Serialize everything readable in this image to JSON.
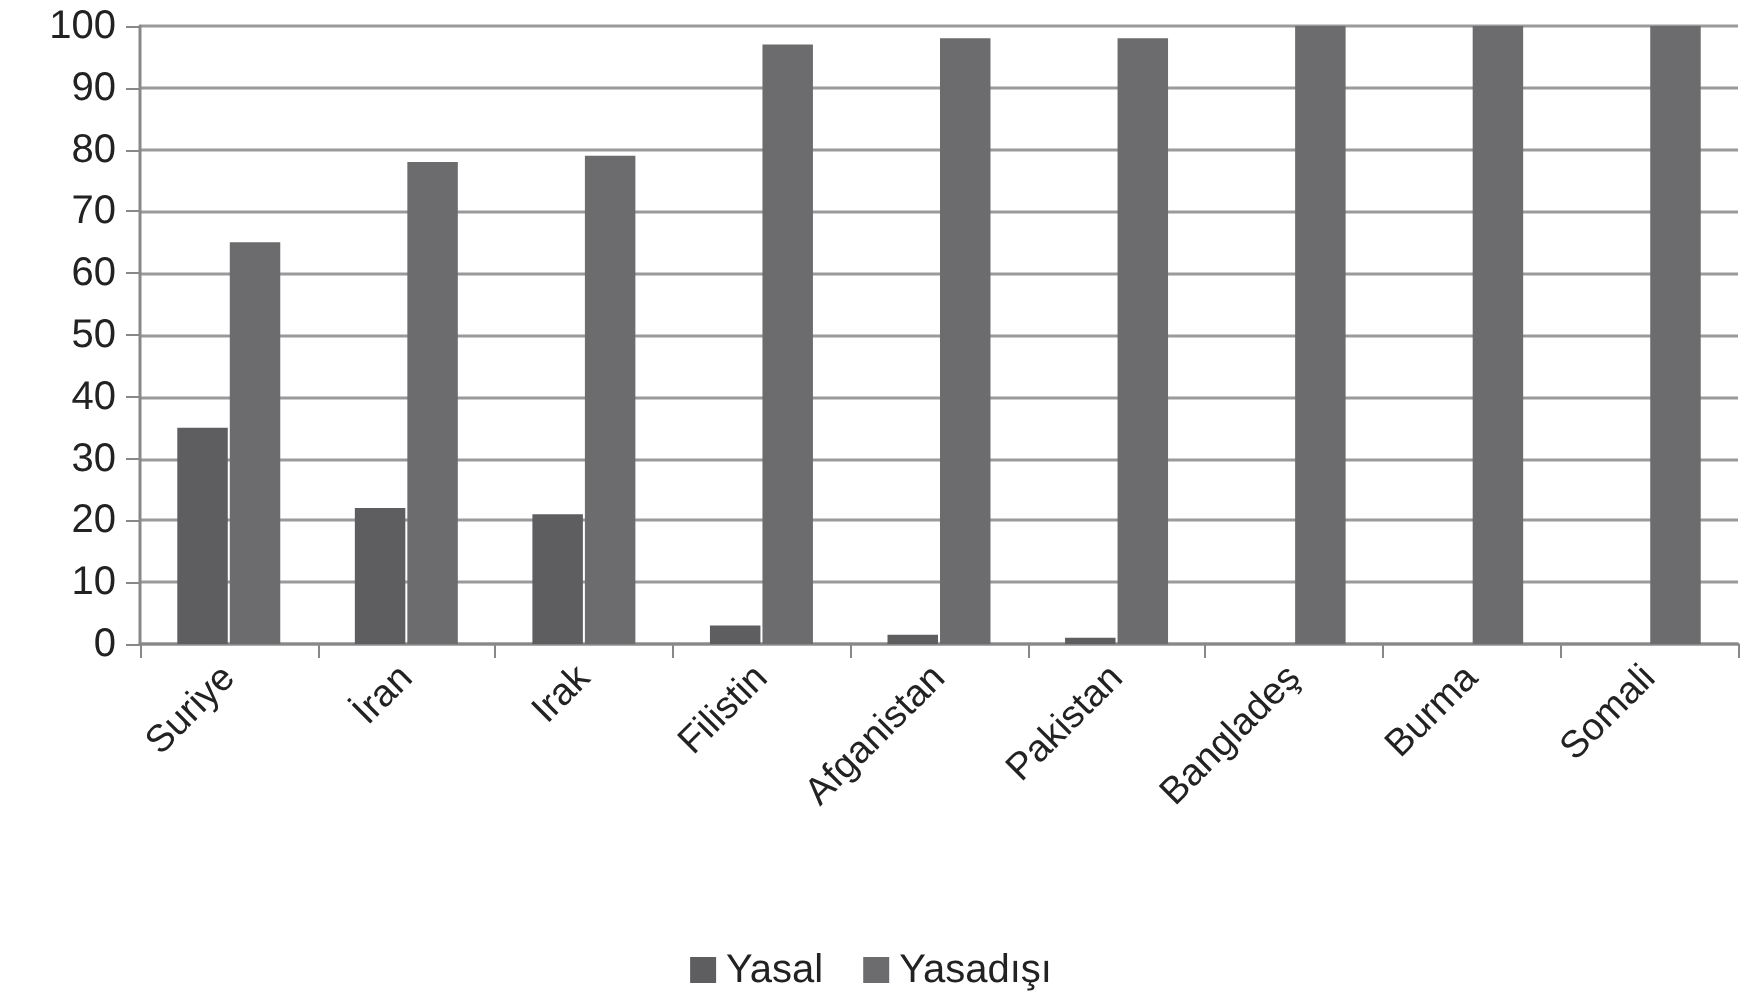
{
  "chart_data": {
    "type": "bar",
    "categories": [
      "Suriye",
      "İran",
      "Irak",
      "Filistin",
      "Afganistan",
      "Pakistan",
      "Bangladeş",
      "Burma",
      "Somali"
    ],
    "series": [
      {
        "name": "Yasal",
        "color": "#5e5e60",
        "values": [
          35,
          22,
          21,
          3,
          1.5,
          1,
          0,
          0,
          0
        ]
      },
      {
        "name": "Yasadışı",
        "color": "#6c6c6e",
        "values": [
          65,
          78,
          79,
          97,
          98,
          98,
          100,
          100,
          100
        ]
      }
    ],
    "ylim": [
      0,
      100
    ],
    "yticks": [
      0,
      10,
      20,
      30,
      40,
      50,
      60,
      70,
      80,
      90,
      100
    ],
    "grid": "y",
    "legend": "bottom"
  }
}
